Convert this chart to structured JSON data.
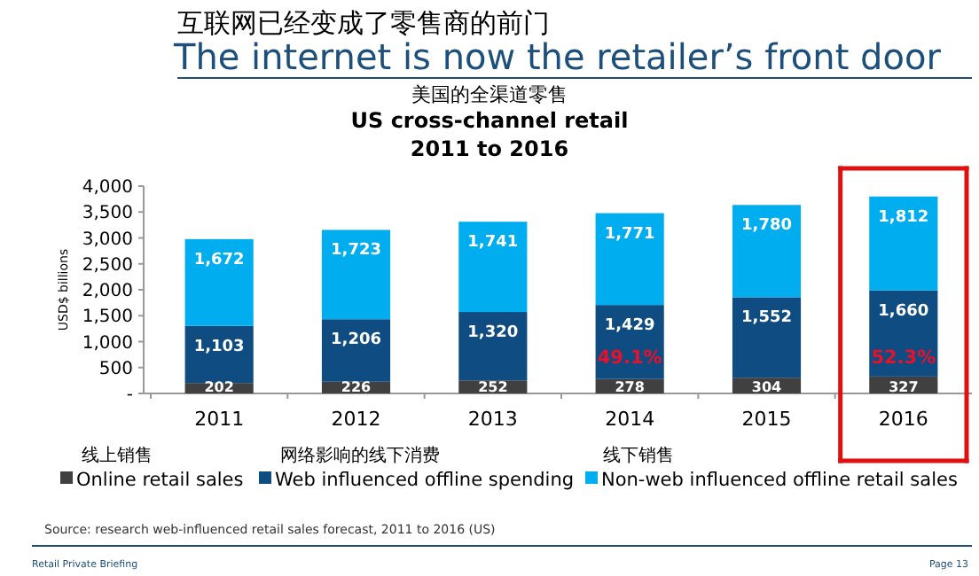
{
  "chart_data": {
    "type": "bar",
    "stacked": true,
    "title": "US cross-channel retail",
    "subtitle": "2011 to 2016",
    "categories": [
      "2011",
      "2012",
      "2013",
      "2014",
      "2015",
      "2016"
    ],
    "series": [
      {
        "name": "Online retail sales",
        "color": "#404040",
        "values": [
          202,
          226,
          252,
          278,
          304,
          327
        ],
        "value_labels": [
          "202",
          "226",
          "252",
          "278",
          "304",
          "327"
        ]
      },
      {
        "name": "Web influenced offline spending",
        "color": "#0f4c81",
        "values": [
          1103,
          1206,
          1320,
          1429,
          1552,
          1660
        ],
        "value_labels": [
          "1,103",
          "1,206",
          "1,320",
          "1,429",
          "1,552",
          "1,660"
        ]
      },
      {
        "name": "Non-web influenced offline retail sales",
        "color": "#00aeef",
        "values": [
          1672,
          1723,
          1741,
          1771,
          1780,
          1812
        ],
        "value_labels": [
          "1,672",
          "1,723",
          "1,741",
          "1,771",
          "1,780",
          "1,812"
        ]
      }
    ],
    "ylabel": "USD$ billions",
    "ylim": [
      0,
      4000
    ],
    "yticks": [
      {
        "value": 0,
        "label": "-"
      },
      500,
      {
        "value": 1000,
        "label": "1,000"
      },
      {
        "value": 1500,
        "label": "1,500"
      },
      {
        "value": 2000,
        "label": "2,000"
      },
      {
        "value": 2500,
        "label": "2,500"
      },
      {
        "value": 3000,
        "label": "3,000"
      },
      {
        "value": 3500,
        "label": "3,500"
      },
      {
        "value": 4000,
        "label": "4,000"
      }
    ],
    "legend": "bottom",
    "annotations": [
      "互联网已经变成了零售商的前门",
      "The internet is now the retailer’s front door",
      "美国的全渠道零售",
      "49.1%",
      "52.3%",
      "线上销售",
      "网络影响的线下消费",
      "线下销售",
      "Source: research web-influenced retail sales forecast, 2011 to 2016 (US)",
      "Retail Private Briefing",
      "Page 13"
    ]
  }
}
